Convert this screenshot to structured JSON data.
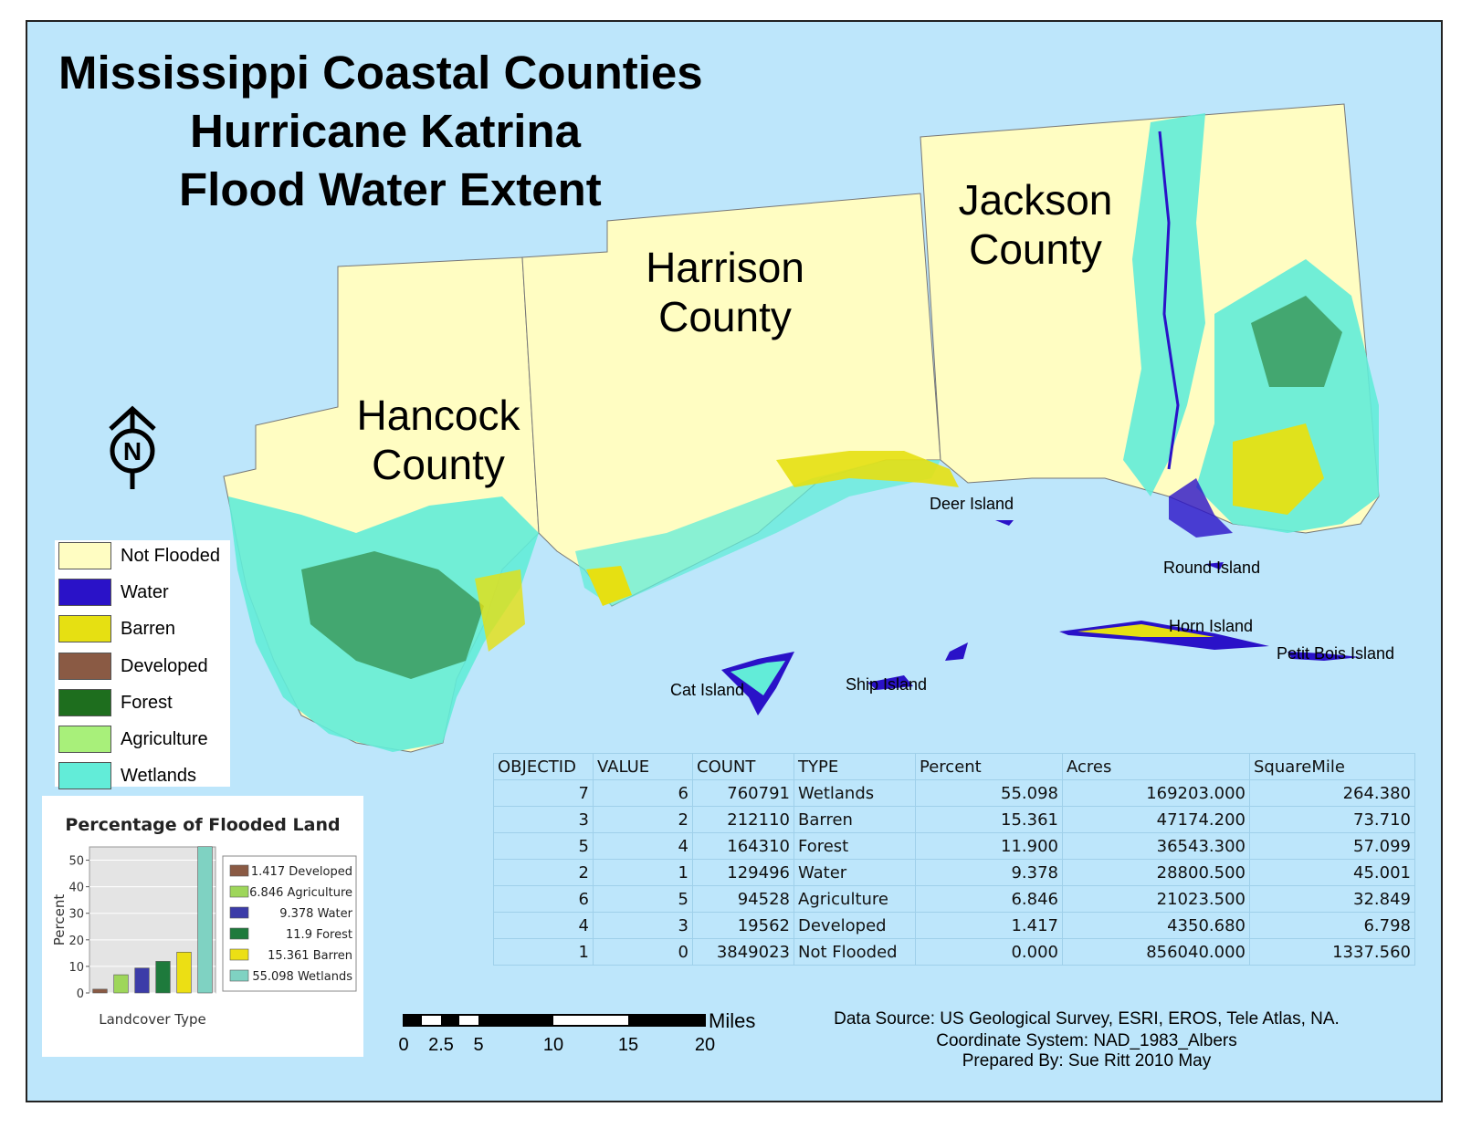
{
  "title": [
    "Mississippi Coastal Counties",
    "Hurricane Katrina",
    "Flood Water Extent"
  ],
  "counties": [
    {
      "name_lines": [
        "Hancock",
        "County"
      ]
    },
    {
      "name_lines": [
        "Harrison",
        "County"
      ]
    },
    {
      "name_lines": [
        "Jackson",
        "County"
      ]
    }
  ],
  "islands": [
    "Deer Island",
    "Round Island",
    "Horn Island",
    "Petit Bois Island",
    "Cat Island",
    "Ship Island"
  ],
  "north_arrow": {
    "letter": "N",
    "icon": "north-arrow-icon"
  },
  "legend": {
    "items": [
      {
        "label": "Not Flooded",
        "color": "#fffdc2"
      },
      {
        "label": "Water",
        "color": "#2a12c8"
      },
      {
        "label": "Barren",
        "color": "#e6e012"
      },
      {
        "label": "Developed",
        "color": "#8a5a44"
      },
      {
        "label": "Forest",
        "color": "#1e6e1e"
      },
      {
        "label": "Agriculture",
        "color": "#a8f07a"
      },
      {
        "label": "Wetlands",
        "color": "#62ecd8"
      }
    ]
  },
  "chart_data": {
    "type": "bar",
    "title": "Percentage of Flooded Land",
    "xlabel": "Landcover Type",
    "ylabel": "Percent",
    "ylim": [
      0,
      55
    ],
    "yticks": [
      "0",
      "10",
      "20",
      "30",
      "40",
      "50"
    ],
    "series": [
      {
        "name": "Developed",
        "value": 1.417,
        "legend_label": "1.417 Developed",
        "color": "#8a5a44"
      },
      {
        "name": "Agriculture",
        "value": 6.846,
        "legend_label": "6.846 Agriculture",
        "color": "#9ed65a"
      },
      {
        "name": "Water",
        "value": 9.378,
        "legend_label": "9.378 Water",
        "color": "#3c3ca8"
      },
      {
        "name": "Forest",
        "value": 11.9,
        "legend_label": "11.9 Forest",
        "color": "#1e7a3c"
      },
      {
        "name": "Barren",
        "value": 15.361,
        "legend_label": "15.361 Barren",
        "color": "#ecdf14"
      },
      {
        "name": "Wetlands",
        "value": 55.098,
        "legend_label": "55.098 Wetlands",
        "color": "#7fd2c2"
      }
    ]
  },
  "table": {
    "headers": [
      "OBJECTID",
      "VALUE",
      "COUNT",
      "TYPE",
      "Percent",
      "Acres",
      "SquareMile"
    ],
    "rows": [
      [
        "7",
        "6",
        "760791",
        "Wetlands",
        "55.098",
        "169203.000",
        "264.380"
      ],
      [
        "3",
        "2",
        "212110",
        "Barren",
        "15.361",
        "47174.200",
        "73.710"
      ],
      [
        "5",
        "4",
        "164310",
        "Forest",
        "11.900",
        "36543.300",
        "57.099"
      ],
      [
        "2",
        "1",
        "129496",
        "Water",
        "9.378",
        "28800.500",
        "45.001"
      ],
      [
        "6",
        "5",
        "94528",
        "Agriculture",
        "6.846",
        "21023.500",
        "32.849"
      ],
      [
        "4",
        "3",
        "19562",
        "Developed",
        "1.417",
        "4350.680",
        "6.798"
      ],
      [
        "1",
        "0",
        "3849023",
        "Not Flooded",
        "0.000",
        "856040.000",
        "1337.560"
      ]
    ]
  },
  "scale_bar": {
    "ticks": [
      "0",
      "2.5",
      "5",
      "10",
      "15",
      "20"
    ],
    "unit": "Miles"
  },
  "source": [
    "Data Source: US Geological Survey, ESRI, EROS, Tele Atlas, NA.",
    "Coordinate System: NAD_1983_Albers",
    "Prepared By: Sue Ritt 2010 May"
  ]
}
